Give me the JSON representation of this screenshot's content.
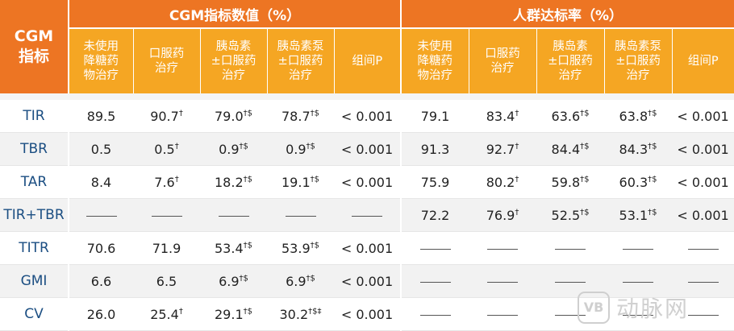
{
  "header": {
    "corner": [
      "CGM",
      "指标"
    ],
    "group_cgm": "CGM指标数值（%）",
    "group_pop": "人群达标率（%）",
    "columns": [
      [
        "未使用",
        "降糖药",
        "物治疗"
      ],
      [
        "口服药",
        "治疗"
      ],
      [
        "胰岛素",
        "±口服药",
        "治疗"
      ],
      [
        "胰岛素泵",
        "±口服药",
        "治疗"
      ],
      [
        "组间P"
      ]
    ]
  },
  "rows": [
    {
      "label": "TIR",
      "cells": [
        {
          "v": "89.5",
          "s": ""
        },
        {
          "v": "90.7",
          "s": "†"
        },
        {
          "v": "79.0",
          "s": "†$"
        },
        {
          "v": "78.7",
          "s": "†$"
        },
        {
          "v": "< 0.001",
          "s": ""
        },
        {
          "v": "79.1",
          "s": ""
        },
        {
          "v": "83.4",
          "s": "†"
        },
        {
          "v": "63.6",
          "s": "†$"
        },
        {
          "v": "63.8",
          "s": "†$"
        },
        {
          "v": "< 0.001",
          "s": ""
        }
      ]
    },
    {
      "label": "TBR",
      "cells": [
        {
          "v": "0.5",
          "s": ""
        },
        {
          "v": "0.5",
          "s": "†"
        },
        {
          "v": "0.9",
          "s": "†$"
        },
        {
          "v": "0.9",
          "s": "†$"
        },
        {
          "v": "< 0.001",
          "s": ""
        },
        {
          "v": "91.3",
          "s": ""
        },
        {
          "v": "92.7",
          "s": "†"
        },
        {
          "v": "84.4",
          "s": "†$"
        },
        {
          "v": "84.3",
          "s": "†$"
        },
        {
          "v": "< 0.001",
          "s": ""
        }
      ]
    },
    {
      "label": "TAR",
      "cells": [
        {
          "v": "8.4",
          "s": ""
        },
        {
          "v": "7.6",
          "s": "†"
        },
        {
          "v": "18.2",
          "s": "†$"
        },
        {
          "v": "19.1",
          "s": "†$"
        },
        {
          "v": "< 0.001",
          "s": ""
        },
        {
          "v": "75.9",
          "s": ""
        },
        {
          "v": "80.2",
          "s": "†"
        },
        {
          "v": "59.8",
          "s": "†$"
        },
        {
          "v": "60.3",
          "s": "†$"
        },
        {
          "v": "< 0.001",
          "s": ""
        }
      ]
    },
    {
      "label": "TIR+TBR",
      "cells": [
        {
          "v": "",
          "s": ""
        },
        {
          "v": "",
          "s": ""
        },
        {
          "v": "",
          "s": ""
        },
        {
          "v": "",
          "s": ""
        },
        {
          "v": "",
          "s": ""
        },
        {
          "v": "72.2",
          "s": ""
        },
        {
          "v": "76.9",
          "s": "†"
        },
        {
          "v": "52.5",
          "s": "†$"
        },
        {
          "v": "53.1",
          "s": "†$"
        },
        {
          "v": "< 0.001",
          "s": ""
        }
      ]
    },
    {
      "label": "TITR",
      "cells": [
        {
          "v": "70.6",
          "s": ""
        },
        {
          "v": "71.9",
          "s": ""
        },
        {
          "v": "53.4",
          "s": "†$"
        },
        {
          "v": "53.9",
          "s": "†$"
        },
        {
          "v": "< 0.001",
          "s": ""
        },
        {
          "v": "",
          "s": ""
        },
        {
          "v": "",
          "s": ""
        },
        {
          "v": "",
          "s": ""
        },
        {
          "v": "",
          "s": ""
        },
        {
          "v": "",
          "s": ""
        }
      ]
    },
    {
      "label": "GMI",
      "cells": [
        {
          "v": "6.6",
          "s": ""
        },
        {
          "v": "6.5",
          "s": ""
        },
        {
          "v": "6.9",
          "s": "†$"
        },
        {
          "v": "6.9",
          "s": "†$"
        },
        {
          "v": "< 0.001",
          "s": ""
        },
        {
          "v": "",
          "s": ""
        },
        {
          "v": "",
          "s": ""
        },
        {
          "v": "",
          "s": ""
        },
        {
          "v": "",
          "s": ""
        },
        {
          "v": "",
          "s": ""
        }
      ]
    },
    {
      "label": "CV",
      "cells": [
        {
          "v": "26.0",
          "s": ""
        },
        {
          "v": "25.4",
          "s": "†"
        },
        {
          "v": "29.1",
          "s": "†$"
        },
        {
          "v": "30.2",
          "s": "†$‡"
        },
        {
          "v": "< 0.001",
          "s": ""
        },
        {
          "v": "",
          "s": ""
        },
        {
          "v": "",
          "s": ""
        },
        {
          "v": "",
          "s": ""
        },
        {
          "v": "",
          "s": ""
        },
        {
          "v": "",
          "s": ""
        }
      ]
    }
  ],
  "watermark": {
    "mark": "VB",
    "text": "动脉网"
  },
  "colors": {
    "header_dark": "#ed7523",
    "header_light": "#f5a623",
    "label": "#1b4e82",
    "row_alt": "#f2f2f2"
  }
}
